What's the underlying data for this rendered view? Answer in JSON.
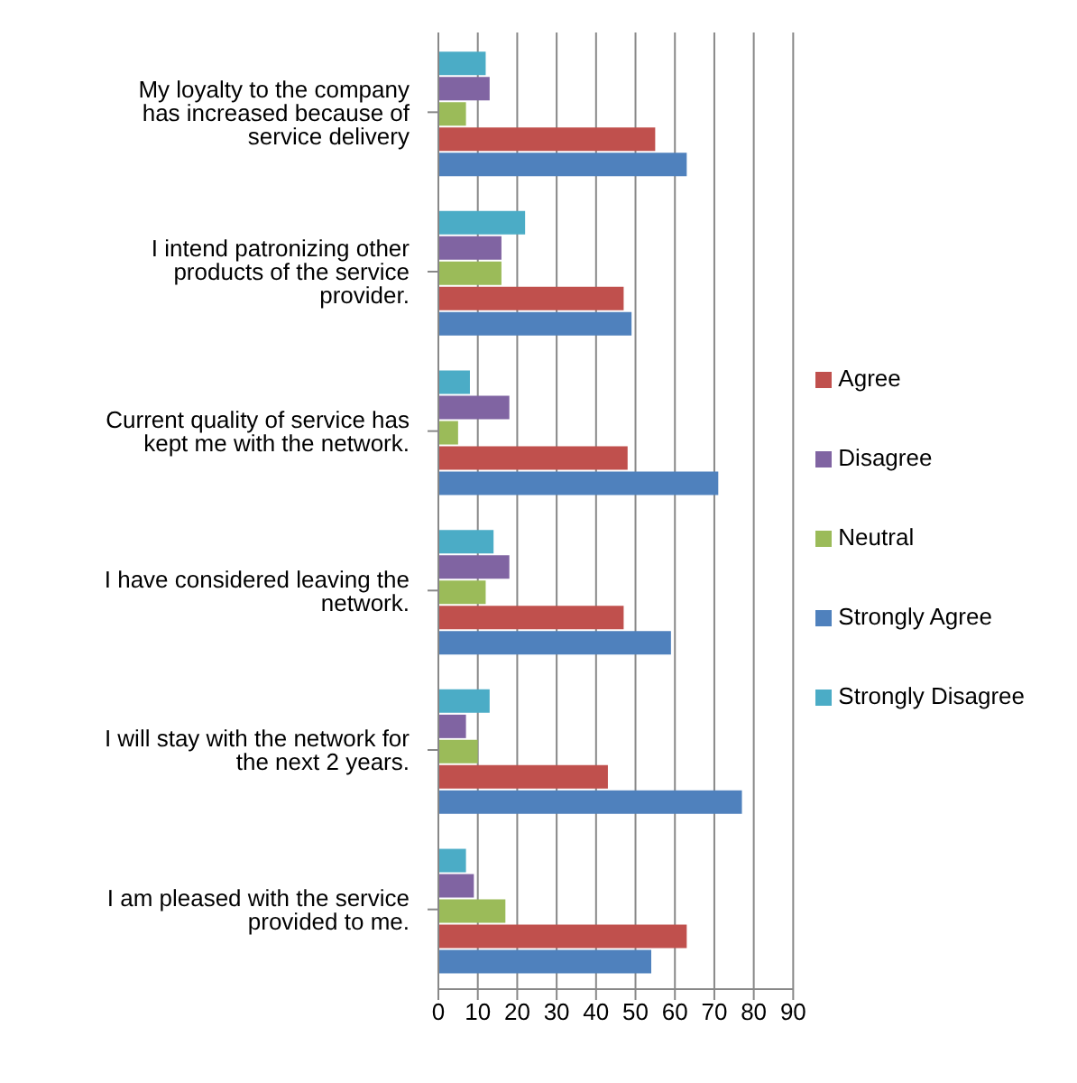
{
  "chart_data": {
    "type": "bar",
    "orientation": "horizontal",
    "categories": [
      "My loyalty to the company has increased because of service delivery",
      "I intend patronizing other products of the service provider.",
      "Current quality of service has kept me with the network.",
      "I have considered leaving the network.",
      "I will stay with the network for the next 2 years.",
      "I am pleased with the service provided to me."
    ],
    "series": [
      {
        "name": "Strongly Disagree",
        "color": "#4bacc6",
        "values": [
          12,
          22,
          8,
          14,
          13,
          7
        ]
      },
      {
        "name": "Disagree",
        "color": "#8064a2",
        "values": [
          13,
          16,
          18,
          18,
          7,
          9
        ]
      },
      {
        "name": "Neutral",
        "color": "#9bbb59",
        "values": [
          7,
          16,
          5,
          12,
          10,
          17
        ]
      },
      {
        "name": "Agree",
        "color": "#c0504d",
        "values": [
          55,
          47,
          48,
          47,
          43,
          63
        ]
      },
      {
        "name": "Strongly Agree",
        "color": "#4f81bd",
        "values": [
          63,
          49,
          71,
          59,
          77,
          54
        ]
      }
    ],
    "xlim": [
      0,
      90
    ],
    "xticks": [
      0,
      10,
      20,
      30,
      40,
      50,
      60,
      70,
      80,
      90
    ],
    "grid": "x",
    "legend": "right"
  }
}
